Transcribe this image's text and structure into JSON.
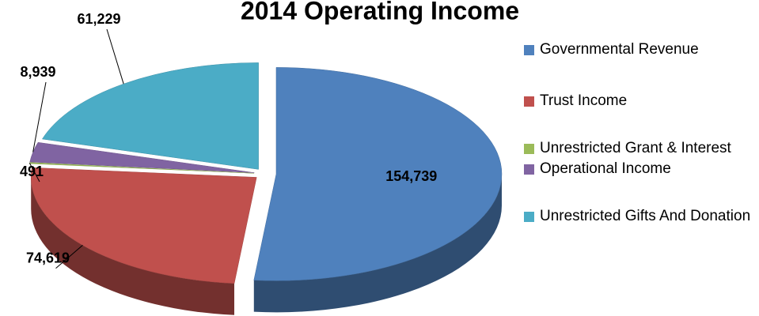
{
  "chart_data": {
    "type": "pie3d",
    "title": "2014 Operating Income",
    "categories": [
      "Governmental Revenue",
      "Trust Income",
      "Unrestricted Grant & Interest",
      "Operational Income",
      "Unrestricted Gifts And Donation"
    ],
    "values": [
      154739,
      74619,
      491,
      8939,
      61229
    ],
    "value_labels": [
      "154,739",
      "74,619",
      "491",
      "8,939",
      "61,229"
    ],
    "colors": [
      "#4f81bd",
      "#c0504d",
      "#9bbb59",
      "#8064a2",
      "#4bacc6"
    ],
    "legend": "right"
  }
}
